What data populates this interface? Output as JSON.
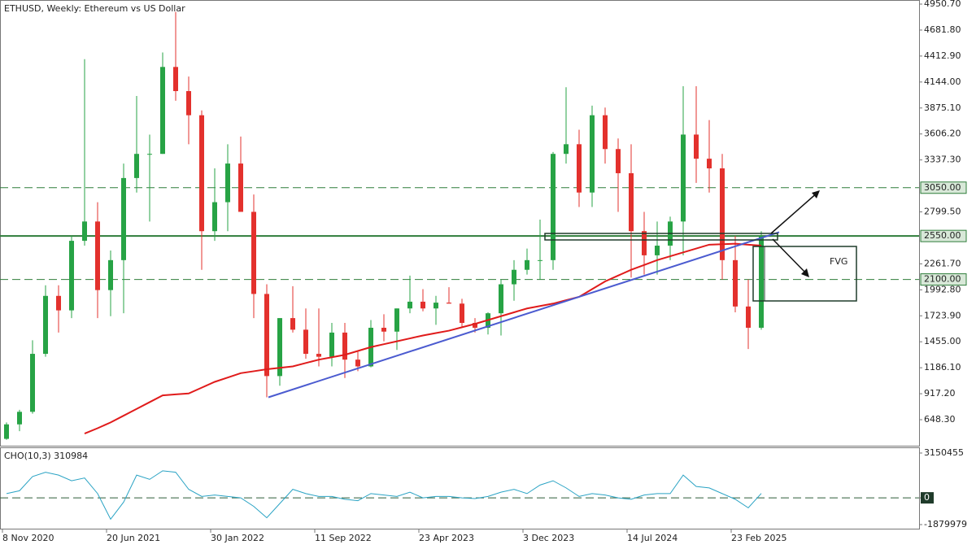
{
  "chart_data": [
    {
      "type": "candlestick",
      "title": "ETHUSD, Weekly:  Ethereum vs US Dollar",
      "categories": [
        "8 Nov 2020",
        null,
        null,
        null,
        null,
        null,
        null,
        null,
        "20 Jun 2021",
        null,
        null,
        null,
        null,
        null,
        null,
        null,
        "30 Jan 2022",
        null,
        null,
        null,
        null,
        null,
        null,
        null,
        "11 Sep 2022",
        null,
        null,
        null,
        null,
        null,
        null,
        null,
        "23 Apr 2023",
        null,
        null,
        null,
        null,
        null,
        null,
        null,
        "3 Dec 2023",
        null,
        null,
        null,
        null,
        null,
        null,
        null,
        "14 Jul 2024",
        null,
        null,
        null,
        null,
        null,
        null,
        null,
        "23 Feb 2025",
        null,
        null
      ],
      "open": [
        450,
        600,
        730,
        1330,
        1930,
        1780,
        2500,
        2700,
        1990,
        2300,
        3150,
        3400,
        3400,
        4300,
        4050,
        3800,
        2600,
        2900,
        3300,
        2800,
        1950,
        1100,
        1700,
        1580,
        1330,
        1300,
        1550,
        1270,
        1200,
        1600,
        1560,
        1800,
        1870,
        1800,
        1860,
        1850,
        1650,
        1600,
        1750,
        2050,
        2200,
        2300,
        2300,
        3400,
        3500,
        3000,
        3800,
        3450,
        3200,
        2600,
        2350,
        2450,
        2700,
        3600,
        3350,
        3250,
        2300,
        1820,
        1600
      ],
      "high": [
        620,
        750,
        1470,
        2040,
        2040,
        2550,
        4380,
        2900,
        2400,
        3300,
        4000,
        3600,
        4450,
        4870,
        4200,
        3850,
        3250,
        3500,
        3580,
        2980,
        2050,
        1700,
        2030,
        1800,
        1800,
        1650,
        1650,
        1350,
        1680,
        1740,
        1800,
        2140,
        2000,
        1930,
        2020,
        1900,
        1700,
        1760,
        2100,
        2300,
        2420,
        2720,
        3420,
        4090,
        3650,
        3900,
        3880,
        3560,
        3500,
        2800,
        2700,
        2750,
        4100,
        4100,
        3750,
        3400,
        2550,
        2100,
        2600
      ],
      "low": [
        440,
        530,
        710,
        1300,
        1550,
        1700,
        2450,
        1700,
        1720,
        1750,
        3000,
        2700,
        3400,
        3950,
        3500,
        2200,
        2500,
        2600,
        2800,
        1700,
        880,
        1000,
        1550,
        1280,
        1200,
        1200,
        1080,
        1150,
        1190,
        1460,
        1370,
        1750,
        1770,
        1630,
        1850,
        1600,
        1550,
        1530,
        1520,
        1880,
        2150,
        2100,
        2200,
        3300,
        2850,
        2850,
        3300,
        2800,
        2120,
        2150,
        2150,
        2300,
        2350,
        3100,
        3000,
        2100,
        1760,
        1380,
        1580
      ],
      "close": [
        600,
        730,
        1330,
        1930,
        1780,
        2500,
        2700,
        1990,
        2300,
        3150,
        3400,
        3400,
        4300,
        4050,
        3800,
        2600,
        2900,
        3300,
        2800,
        1950,
        1100,
        1700,
        1580,
        1330,
        1300,
        1550,
        1270,
        1200,
        1600,
        1560,
        1800,
        1870,
        1800,
        1860,
        1850,
        1650,
        1600,
        1750,
        2050,
        2200,
        2300,
        2300,
        3400,
        3500,
        3000,
        3800,
        3450,
        3200,
        2600,
        2350,
        2450,
        2700,
        3600,
        3350,
        3250,
        2300,
        1820,
        1600,
        2550
      ],
      "up_color": "#27a345",
      "down_color": "#e3312d",
      "ma": {
        "color": "#e01b1b",
        "values": [
          null,
          null,
          null,
          null,
          null,
          null,
          505,
          560,
          620,
          690,
          760,
          830,
          900,
          910,
          920,
          980,
          1040,
          1085,
          1130,
          1150,
          1170,
          1185,
          1200,
          1235,
          1270,
          1295,
          1320,
          1360,
          1400,
          1430,
          1460,
          1490,
          1520,
          1545,
          1570,
          1605,
          1640,
          1680,
          1720,
          1760,
          1800,
          1825,
          1850,
          1885,
          1920,
          2000,
          2080,
          2140,
          2200,
          2250,
          2300,
          2340,
          2380,
          2420,
          2460,
          2465,
          2470,
          2460,
          2450
        ]
      },
      "trendline": {
        "color": "#4b5bd0",
        "values": [
          880,
          2590
        ]
      },
      "levels": [
        {
          "value": 3050,
          "label": "3050.00",
          "style": "dashed"
        },
        {
          "value": 2550,
          "label": "2550.00",
          "style": "solid"
        },
        {
          "value": 2100,
          "label": "2100.00",
          "style": "dashed"
        }
      ],
      "level_color": "#2e7d3a",
      "annotation": "FVG",
      "ylim": [
        379,
        4993
      ],
      "yticks": [
        {
          "value": 4950.7,
          "label": "4950.70"
        },
        {
          "value": 4681.8,
          "label": "4681.80"
        },
        {
          "value": 4412.9,
          "label": "4412.90"
        },
        {
          "value": 4144,
          "label": "4144.00"
        },
        {
          "value": 3875.1,
          "label": "3875.10"
        },
        {
          "value": 3606.2,
          "label": "3606.20"
        },
        {
          "value": 3337.3,
          "label": "3337.30"
        },
        {
          "value": 2799.5,
          "label": "2799.50"
        },
        {
          "value": 2261.7,
          "label": "2261.70"
        },
        {
          "value": 1992.8,
          "label": "1992.80"
        },
        {
          "value": 1723.9,
          "label": "1723.90"
        },
        {
          "value": 1455,
          "label": "1455.00"
        },
        {
          "value": 1186.1,
          "label": "1186.10"
        },
        {
          "value": 917.2,
          "label": "917.20"
        },
        {
          "value": 648.3,
          "label": "648.30"
        }
      ]
    },
    {
      "type": "line",
      "title": "CHO(10,3) 310984",
      "color": "#2aa3c4",
      "values": [
        300000,
        500000,
        1500000,
        1800000,
        1600000,
        1200000,
        1400000,
        300000,
        -1500000,
        -300000,
        1600000,
        1300000,
        1900000,
        1800000,
        600000,
        100000,
        200000,
        100000,
        0,
        -600000,
        -1400000,
        -400000,
        600000,
        300000,
        100000,
        100000,
        -100000,
        -200000,
        300000,
        200000,
        100000,
        400000,
        0,
        100000,
        100000,
        0,
        -50000,
        100000,
        400000,
        600000,
        300000,
        900000,
        1200000,
        700000,
        100000,
        300000,
        200000,
        0,
        -100000,
        200000,
        300000,
        300000,
        1600000,
        800000,
        700000,
        300000,
        -100000,
        -700000,
        310984
      ],
      "ylim": [
        -2166000,
        3551000
      ],
      "yticks": [
        3150455,
        0,
        -1879979
      ]
    }
  ]
}
